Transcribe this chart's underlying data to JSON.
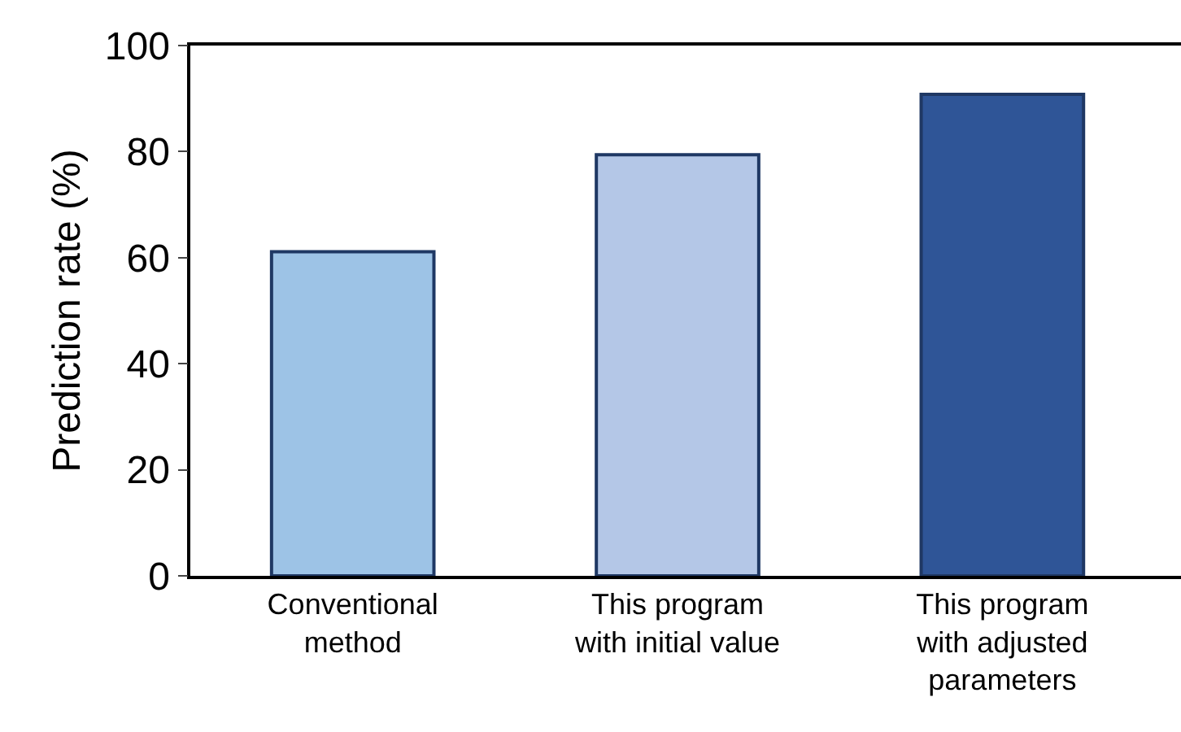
{
  "chart_data": {
    "type": "bar",
    "ylabel": "Prediction rate (%)",
    "categories": [
      "Conventional\nmethod",
      "This program\nwith initial value",
      "This program\nwith adjusted\nparameters"
    ],
    "values": [
      61.1,
      79.4,
      90.8
    ],
    "colors": [
      "#9dc3e6",
      "#b4c7e7",
      "#2f5597"
    ],
    "ylim": [
      0,
      100
    ],
    "yticks": [
      0,
      20,
      40,
      60,
      80,
      100
    ]
  }
}
